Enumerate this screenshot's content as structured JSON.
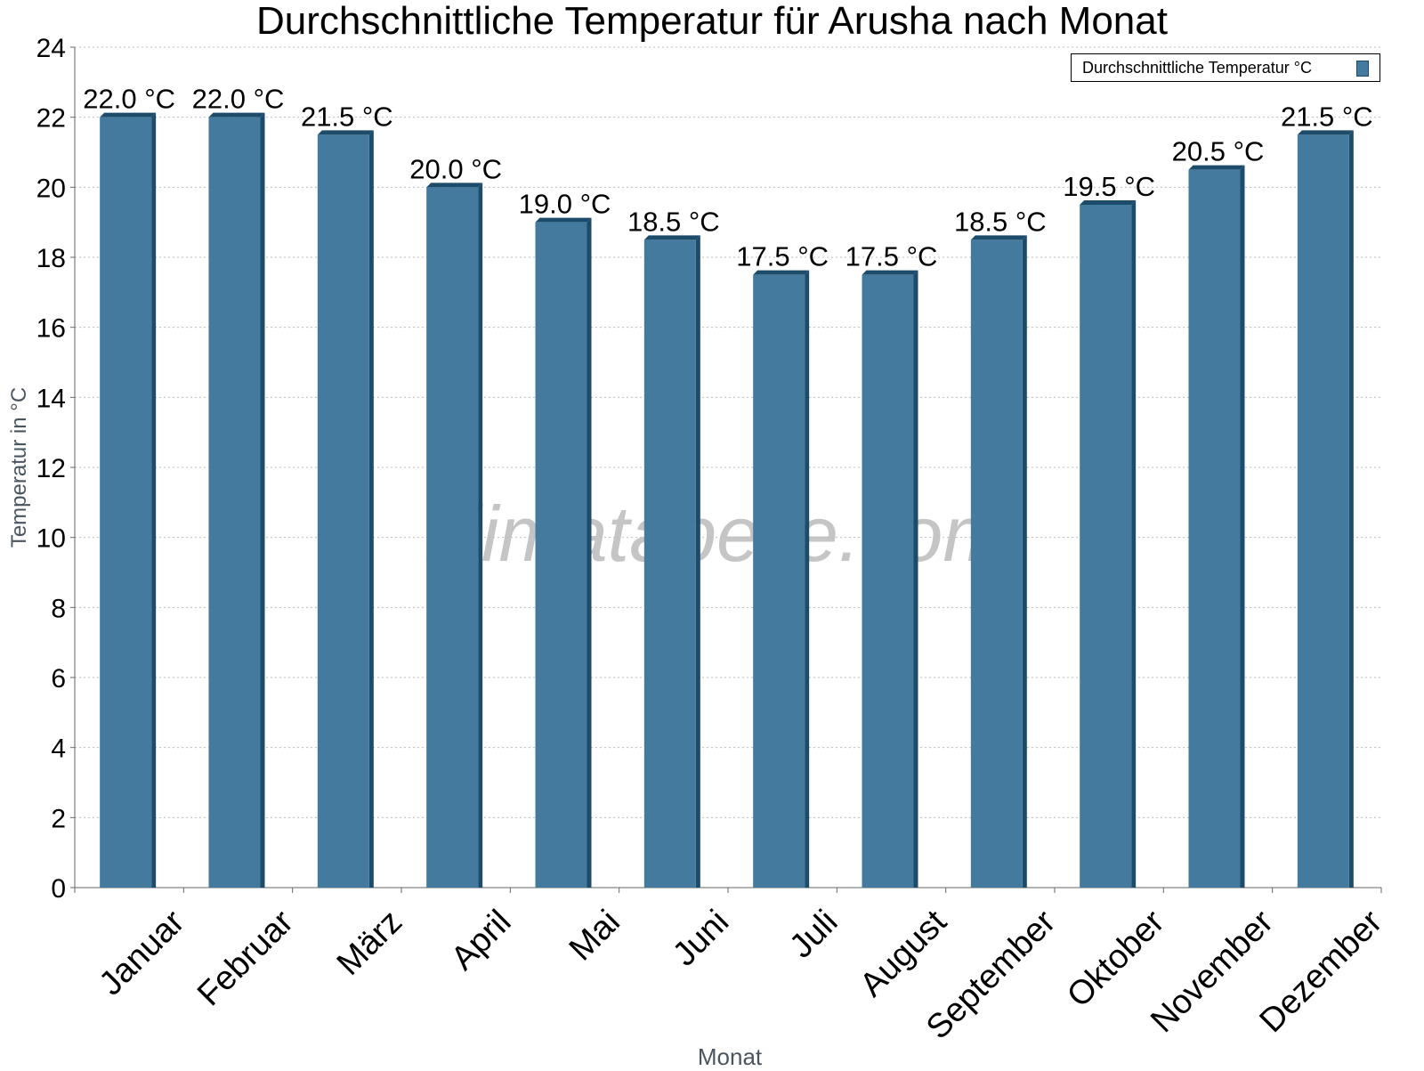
{
  "chart_data": {
    "type": "bar",
    "title": "Durchschnittliche Temperatur für Arusha nach Monat",
    "xlabel": "Monat",
    "ylabel": "Temperatur in °C",
    "ylim": [
      0,
      24
    ],
    "yticks": [
      0,
      2,
      4,
      6,
      8,
      10,
      12,
      14,
      16,
      18,
      20,
      22,
      24
    ],
    "grid": true,
    "legend_position": "top-right",
    "categories": [
      "Januar",
      "Februar",
      "März",
      "April",
      "Mai",
      "Juni",
      "Juli",
      "August",
      "September",
      "Oktober",
      "November",
      "Dezember"
    ],
    "series": [
      {
        "name": "Durchschnittliche Temperatur °C",
        "values": [
          22.0,
          22.0,
          21.5,
          20.0,
          19.0,
          18.5,
          17.5,
          17.5,
          18.5,
          19.5,
          20.5,
          21.5
        ],
        "data_labels": [
          "22.0 °C",
          "22.0 °C",
          "21.5 °C",
          "20.0 °C",
          "19.0 °C",
          "18.5 °C",
          "17.5 °C",
          "17.5 °C",
          "18.5 °C",
          "19.5 °C",
          "20.5 °C",
          "21.5 °C"
        ],
        "color": "#437a9e",
        "shade_color": "#1d4c6a"
      }
    ],
    "watermark": "klimatabelle.com"
  }
}
